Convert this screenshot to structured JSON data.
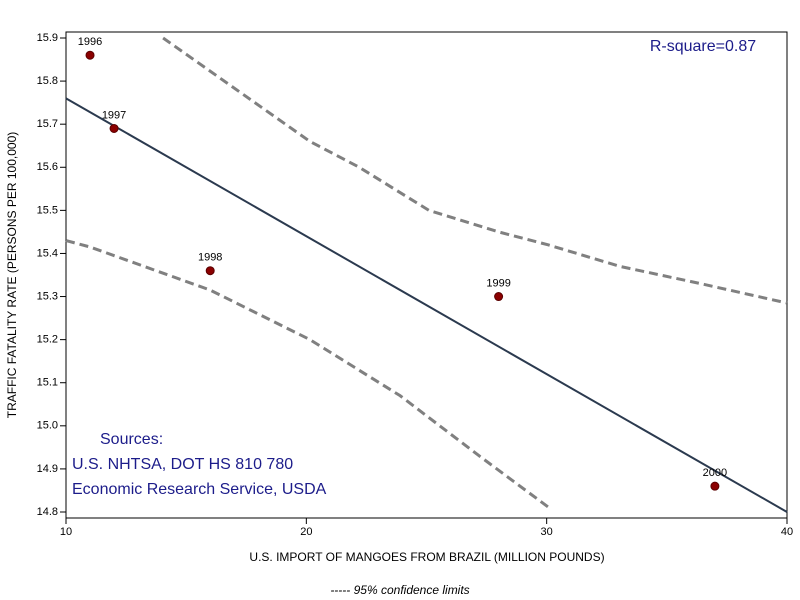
{
  "chart_data": {
    "type": "scatter",
    "x_label": "U.S. IMPORT OF MANGOES FROM BRAZIL (MILLION POUNDS)",
    "y_label": "TRAFFIC FATALITY RATE (PERSONS PER 100,000)",
    "annotations": [
      "R-square=0.87",
      "Sources:",
      "U.S. NHTSA, DOT HS 810 780",
      "Economic Research Service, USDA"
    ],
    "footnote": "----- 95% confidence limits",
    "xlim": [
      10,
      40
    ],
    "xticks": [
      10,
      20,
      30,
      40
    ],
    "ylim": [
      14.8,
      15.9
    ],
    "yticks": [
      14.8,
      14.9,
      {
        "value": 15,
        "label": "15.0"
      },
      15.1,
      15.2,
      15.3,
      15.4,
      15.5,
      15.6,
      15.7,
      15.8,
      15.9
    ],
    "points": {
      "labels": [
        "1996",
        "1997",
        "1998",
        "1999",
        "2000"
      ],
      "x": [
        11,
        12,
        16,
        28,
        37
      ],
      "y": [
        15.86,
        15.69,
        15.36,
        15.3,
        14.86
      ],
      "color": "#8b0000"
    },
    "fit_line": {
      "x": [
        10,
        40
      ],
      "y": [
        15.76,
        14.8
      ],
      "color": "#2b3a4f"
    },
    "upper_limit": {
      "x": [
        14.04,
        20.15,
        22.2,
        25.1,
        28,
        30.06,
        33.05,
        36.4,
        40
      ],
      "y": [
        15.9,
        15.66,
        15.6,
        15.5,
        15.45,
        15.42,
        15.37,
        15.33,
        15.285
      ],
      "color": "#808080"
    },
    "lower_limit": {
      "x": [
        10,
        11,
        16,
        20.15,
        23.9,
        27.2,
        30.1
      ],
      "y": [
        15.43,
        15.415,
        15.315,
        15.2,
        15.07,
        14.93,
        14.81
      ],
      "color": "#808080"
    }
  }
}
